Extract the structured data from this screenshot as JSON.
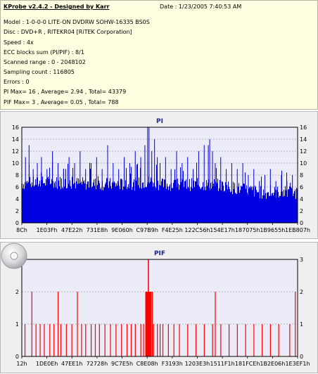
{
  "info": {
    "title": "KProbe v2.4.2 - Designed by Karr",
    "date": "Date : 1/23/2005 7:40:53 AM",
    "lines": [
      "Model : 1-0-0-0 LITE-ON DVDRW SOHW-16335 BS0S",
      "Disc : DVD+R , RITEKR04 [RiTEK Corporation]",
      "Speed : 4x",
      "ECC blocks sum (PI/PIF) : 8/1",
      "Scanned range : 0 - 2048102",
      "Sampling count : 116805",
      "Errors : 0",
      "PI Max= 16 , Average= 2.94 , Total= 43379",
      "PIF Max= 3 , Average= 0.05 , Total= 788"
    ]
  },
  "chart_data": [
    {
      "type": "bar",
      "title": "PI",
      "ylim": [
        0,
        16
      ],
      "yticks": [
        0,
        2,
        4,
        6,
        8,
        10,
        12,
        14,
        16
      ],
      "xticks": [
        "8Ch",
        "1E03Fh",
        "47E22h",
        "731E8h",
        "9E060h",
        "C97B9h",
        "F4E25h",
        "122C56h",
        "154E17h",
        "187075h",
        "1B9655h",
        "1EB807h"
      ],
      "grid": true,
      "bar_color": "#0000e0",
      "baseline": [
        [
          0,
          6.6
        ],
        [
          0.1,
          6.8
        ],
        [
          0.2,
          6.6
        ],
        [
          0.3,
          6.5
        ],
        [
          0.4,
          6.4
        ],
        [
          0.47,
          7.0
        ],
        [
          0.5,
          6.4
        ],
        [
          0.6,
          6.4
        ],
        [
          0.7,
          6.4
        ],
        [
          0.8,
          5.6
        ],
        [
          0.88,
          5.0
        ],
        [
          0.95,
          5.2
        ],
        [
          1,
          5.0
        ]
      ],
      "peaks": [
        [
          0.012,
          11
        ],
        [
          0.025,
          13
        ],
        [
          0.04,
          9
        ],
        [
          0.055,
          10
        ],
        [
          0.07,
          11
        ],
        [
          0.09,
          9
        ],
        [
          0.11,
          12
        ],
        [
          0.13,
          10
        ],
        [
          0.15,
          9
        ],
        [
          0.17,
          11
        ],
        [
          0.19,
          10
        ],
        [
          0.21,
          12
        ],
        [
          0.23,
          9
        ],
        [
          0.25,
          10
        ],
        [
          0.27,
          11
        ],
        [
          0.29,
          9
        ],
        [
          0.31,
          13
        ],
        [
          0.33,
          10
        ],
        [
          0.35,
          9
        ],
        [
          0.37,
          11
        ],
        [
          0.39,
          10
        ],
        [
          0.41,
          12
        ],
        [
          0.43,
          11
        ],
        [
          0.445,
          13
        ],
        [
          0.455,
          16
        ],
        [
          0.46,
          16
        ],
        [
          0.47,
          12
        ],
        [
          0.48,
          14
        ],
        [
          0.49,
          11
        ],
        [
          0.5,
          10
        ],
        [
          0.52,
          11
        ],
        [
          0.54,
          9
        ],
        [
          0.56,
          12
        ],
        [
          0.58,
          10
        ],
        [
          0.6,
          11
        ],
        [
          0.62,
          9
        ],
        [
          0.64,
          12
        ],
        [
          0.66,
          13
        ],
        [
          0.675,
          13
        ],
        [
          0.68,
          14
        ],
        [
          0.69,
          12
        ],
        [
          0.7,
          10
        ],
        [
          0.72,
          11
        ],
        [
          0.74,
          9
        ],
        [
          0.76,
          10
        ],
        [
          0.78,
          9
        ],
        [
          0.8,
          10
        ],
        [
          0.82,
          8
        ],
        [
          0.84,
          9
        ],
        [
          0.86,
          7
        ],
        [
          0.88,
          8
        ],
        [
          0.9,
          9
        ],
        [
          0.92,
          7
        ],
        [
          0.94,
          8
        ],
        [
          0.96,
          7
        ],
        [
          0.98,
          8
        ]
      ]
    },
    {
      "type": "bar",
      "title": "PIF",
      "ylim": [
        0,
        3
      ],
      "yticks": [
        0,
        1,
        2,
        3
      ],
      "xticks": [
        "12h",
        "1DE0Eh",
        "47EE1h",
        "72728h",
        "9C7E5h",
        "C8E08h",
        "F3193h",
        "1203E3h",
        "1511F1h",
        "181FCEh",
        "1B2E06h",
        "1E3EF1h"
      ],
      "grid": true,
      "bar_color": "#ff0000",
      "spikes": [
        [
          0.01,
          1
        ],
        [
          0.035,
          2
        ],
        [
          0.05,
          1
        ],
        [
          0.065,
          1
        ],
        [
          0.08,
          1
        ],
        [
          0.1,
          1
        ],
        [
          0.115,
          1
        ],
        [
          0.13,
          2
        ],
        [
          0.14,
          1
        ],
        [
          0.16,
          1
        ],
        [
          0.18,
          1
        ],
        [
          0.2,
          2
        ],
        [
          0.215,
          1
        ],
        [
          0.23,
          1
        ],
        [
          0.25,
          1
        ],
        [
          0.265,
          1
        ],
        [
          0.28,
          1
        ],
        [
          0.3,
          1
        ],
        [
          0.32,
          1
        ],
        [
          0.34,
          1
        ],
        [
          0.36,
          1
        ],
        [
          0.38,
          1
        ],
        [
          0.395,
          1
        ],
        [
          0.41,
          1
        ],
        [
          0.43,
          1
        ],
        [
          0.44,
          1
        ],
        [
          0.448,
          2
        ],
        [
          0.452,
          2
        ],
        [
          0.455,
          2
        ],
        [
          0.458,
          3
        ],
        [
          0.461,
          2
        ],
        [
          0.464,
          2
        ],
        [
          0.467,
          1
        ],
        [
          0.472,
          2
        ],
        [
          0.476,
          1
        ],
        [
          0.49,
          1
        ],
        [
          0.5,
          1
        ],
        [
          0.51,
          1
        ],
        [
          0.53,
          1
        ],
        [
          0.55,
          1
        ],
        [
          0.57,
          1
        ],
        [
          0.6,
          1
        ],
        [
          0.63,
          1
        ],
        [
          0.66,
          1
        ],
        [
          0.69,
          1
        ],
        [
          0.7,
          2
        ],
        [
          0.72,
          1
        ],
        [
          0.75,
          1
        ],
        [
          0.78,
          1
        ],
        [
          0.81,
          1
        ],
        [
          0.84,
          1
        ],
        [
          0.87,
          1
        ],
        [
          0.9,
          1
        ],
        [
          0.93,
          1
        ],
        [
          0.97,
          1
        ],
        [
          0.99,
          2
        ]
      ]
    }
  ],
  "icon": "cd-disc-icon"
}
